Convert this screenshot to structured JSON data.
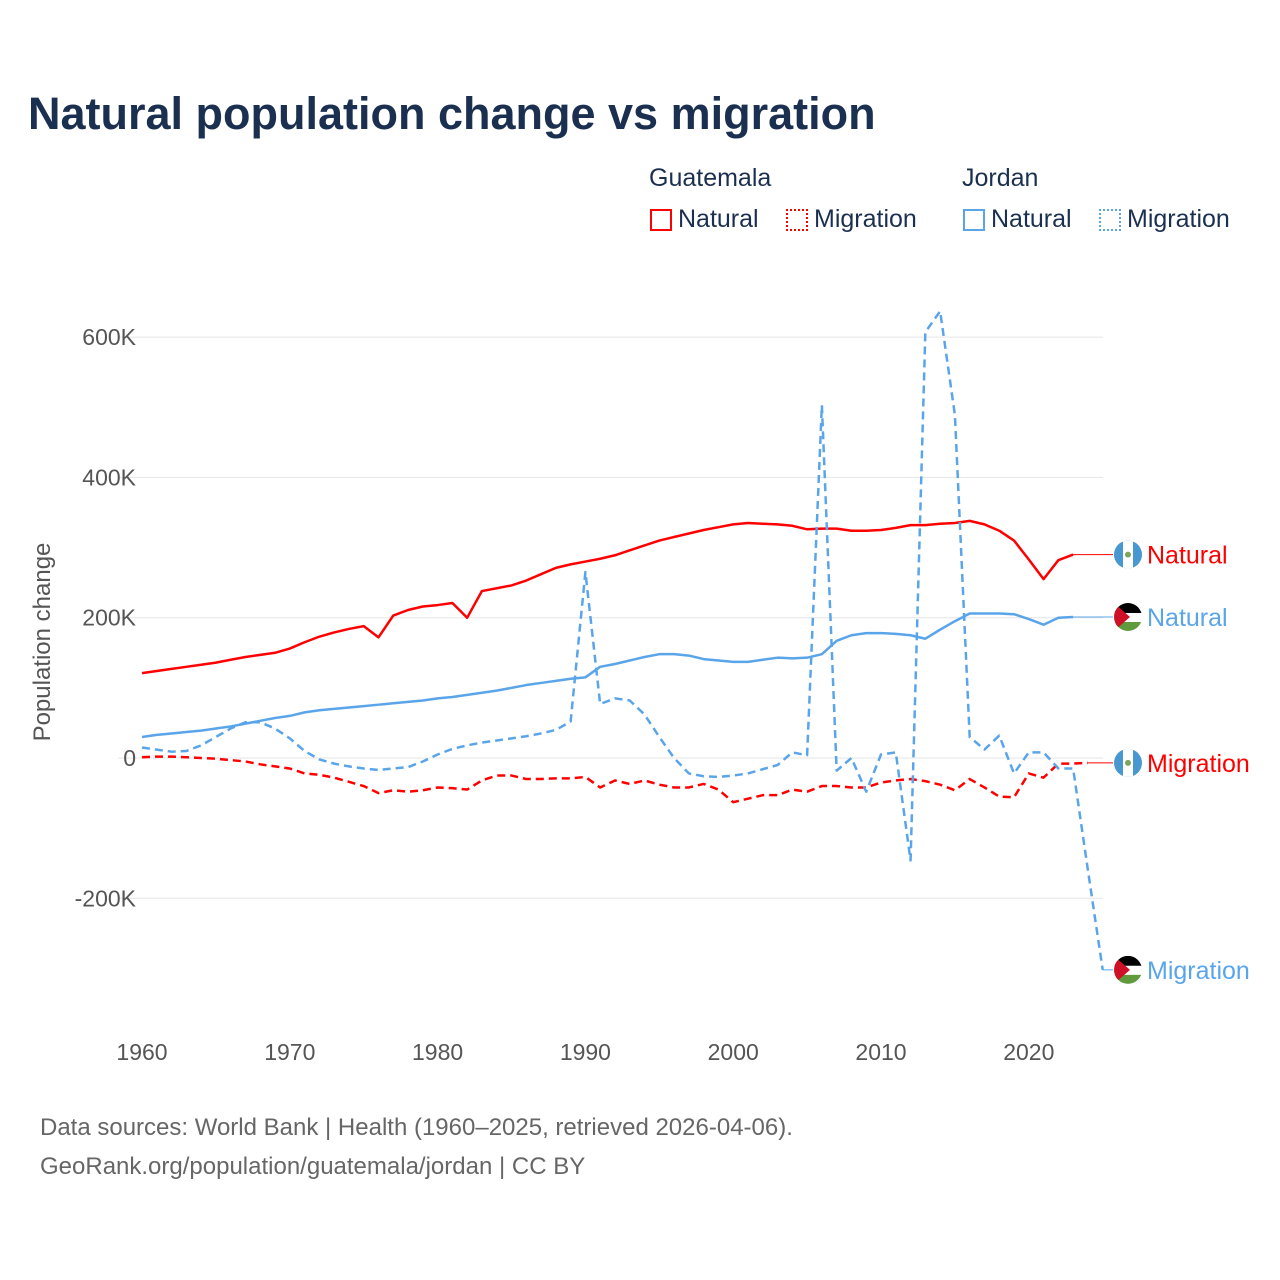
{
  "title": "Natural population change vs migration",
  "legend": {
    "groups": [
      {
        "name": "Guatemala",
        "items": [
          "Natural",
          "Migration"
        ]
      },
      {
        "name": "Jordan",
        "items": [
          "Natural",
          "Migration"
        ]
      }
    ]
  },
  "footer": {
    "line1": "Data sources: World Bank | Health (1960–2025, retrieved 2026-04-06).",
    "line2": "GeoRank.org/population/guatemala/jordan | CC BY"
  },
  "chart_data": {
    "type": "line",
    "title": "Natural population change vs migration",
    "xlabel": "",
    "ylabel": "Population change",
    "xlim": [
      1960,
      2025
    ],
    "ylim": [
      -300,
      650
    ],
    "grid": true,
    "x_ticks": [
      1960,
      1970,
      1980,
      1990,
      2000,
      2010,
      2020
    ],
    "y_ticks": [
      {
        "v": -200,
        "label": "-200K"
      },
      {
        "v": 0,
        "label": "0"
      },
      {
        "v": 200,
        "label": "200K"
      },
      {
        "v": 400,
        "label": "400K"
      },
      {
        "v": 600,
        "label": "600K"
      }
    ],
    "colors": {
      "Guatemala": "#ff0000",
      "Jordan": "#5aa5ea"
    },
    "series": [
      {
        "name": "Guatemala Natural",
        "country": "Guatemala",
        "kind": "Natural",
        "dashed": false,
        "end_label": "Natural",
        "start": 1960,
        "values": [
          121,
          124,
          127,
          130,
          133,
          136,
          140,
          144,
          147,
          150,
          156,
          165,
          173,
          179,
          184,
          188,
          172,
          203,
          211,
          216,
          218,
          221,
          200,
          238,
          242,
          246,
          253,
          262,
          271,
          276,
          280,
          284,
          289,
          296,
          303,
          310,
          315,
          320,
          325,
          329,
          333,
          335,
          334,
          333,
          331,
          326,
          327,
          327,
          324,
          324,
          325,
          328,
          332,
          332,
          334,
          335,
          338,
          333,
          324,
          310,
          283,
          255,
          282,
          290
        ]
      },
      {
        "name": "Jordan Natural",
        "country": "Jordan",
        "kind": "Natural",
        "dashed": false,
        "end_label": "Natural",
        "start": 1960,
        "values": [
          30,
          33,
          35,
          37,
          39,
          42,
          45,
          49,
          53,
          57,
          60,
          65,
          68,
          70,
          72,
          74,
          76,
          78,
          80,
          82,
          85,
          87,
          90,
          93,
          96,
          100,
          104,
          107,
          110,
          113,
          115,
          130,
          134,
          139,
          144,
          148,
          148,
          146,
          141,
          139,
          137,
          137,
          140,
          143,
          142,
          143,
          148,
          167,
          175,
          178,
          178,
          177,
          175,
          170,
          183,
          195,
          206,
          206,
          206,
          205,
          198,
          190,
          200,
          201
        ]
      },
      {
        "name": "Guatemala Migration",
        "country": "Guatemala",
        "kind": "Migration",
        "dashed": true,
        "end_label": "Migration",
        "start": 1960,
        "values": [
          1,
          2,
          2,
          1,
          0,
          -1,
          -3,
          -5,
          -9,
          -12,
          -15,
          -22,
          -24,
          -28,
          -34,
          -40,
          -50,
          -46,
          -48,
          -46,
          -42,
          -43,
          -45,
          -32,
          -25,
          -25,
          -30,
          -30,
          -29,
          -29,
          -27,
          -42,
          -32,
          -37,
          -32,
          -38,
          -42,
          -42,
          -37,
          -45,
          -63,
          -58,
          -53,
          -53,
          -45,
          -48,
          -40,
          -40,
          -42,
          -42,
          -35,
          -32,
          -30,
          -33,
          -38,
          -46,
          -30,
          -42,
          -55,
          -56,
          -22,
          -28,
          -8,
          -8,
          -7
        ]
      },
      {
        "name": "Jordan Migration",
        "country": "Jordan",
        "kind": "Migration",
        "dashed": true,
        "end_label": "Migration",
        "start": 1960,
        "values": [
          15,
          12,
          9,
          10,
          18,
          30,
          42,
          51,
          51,
          42,
          28,
          10,
          -2,
          -8,
          -12,
          -15,
          -17,
          -15,
          -13,
          -5,
          5,
          13,
          18,
          22,
          25,
          28,
          31,
          35,
          40,
          52,
          265,
          77,
          85,
          82,
          62,
          30,
          0,
          -22,
          -26,
          -27,
          -25,
          -22,
          -16,
          -10,
          8,
          4,
          503,
          -18,
          0,
          -48,
          5,
          8,
          -146,
          607,
          637,
          489,
          30,
          12,
          32,
          -22,
          8,
          8,
          -15,
          -15,
          -160,
          -302
        ]
      }
    ]
  }
}
